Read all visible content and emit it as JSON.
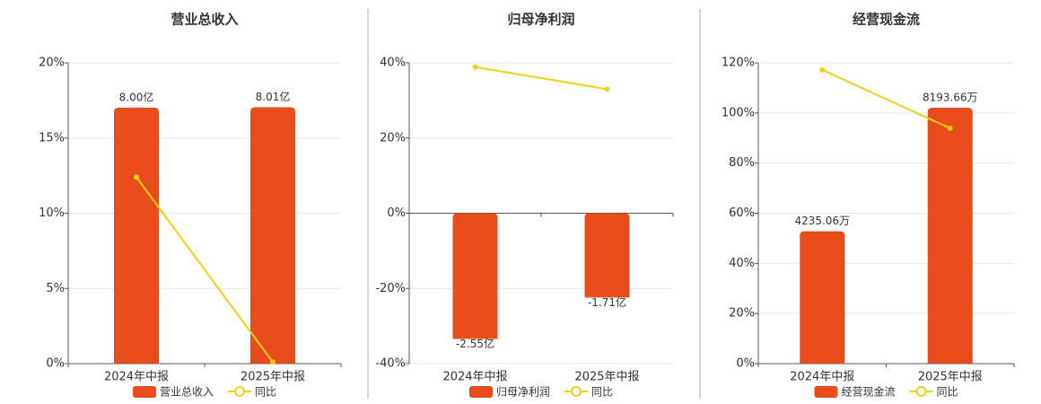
{
  "chart_data": [
    {
      "type": "bar",
      "title": "营业总收入",
      "categories": [
        "2024年中报",
        "2025年中报"
      ],
      "series": [
        {
          "name": "营业总收入",
          "type": "bar",
          "color": "#e84c1b",
          "axis": "y2",
          "values": [
            8.0,
            8.01
          ],
          "value_labels": [
            "8.00亿",
            "8.01亿"
          ]
        },
        {
          "name": "同比",
          "type": "line",
          "color": "#f2d011",
          "values": [
            12.4,
            0.1
          ]
        }
      ],
      "ylim": [
        0,
        20
      ],
      "yticks": [
        {
          "value": 0,
          "label": "0%"
        },
        {
          "value": 5,
          "label": "5%"
        },
        {
          "value": 10,
          "label": "10%"
        },
        {
          "value": 15,
          "label": "15%"
        },
        {
          "value": 20,
          "label": "20%"
        }
      ],
      "y2lim": [
        0,
        9.4
      ],
      "grid": true
    },
    {
      "type": "bar",
      "title": "归母净利润",
      "categories": [
        "2024年中报",
        "2025年中报"
      ],
      "series": [
        {
          "name": "归母净利润",
          "type": "bar",
          "color": "#e84c1b",
          "axis": "y2",
          "values": [
            -2.55,
            -1.71
          ],
          "value_labels": [
            "-2.55亿",
            "-1.71亿"
          ]
        },
        {
          "name": "同比",
          "type": "line",
          "color": "#f2d011",
          "values": [
            38.9,
            33.0
          ]
        }
      ],
      "ylim": [
        -40,
        40
      ],
      "yticks": [
        {
          "value": -40,
          "label": "-40%"
        },
        {
          "value": -20,
          "label": "-20%"
        },
        {
          "value": 0,
          "label": "0%"
        },
        {
          "value": 20,
          "label": "20%"
        },
        {
          "value": 40,
          "label": "40%"
        }
      ],
      "y2lim": [
        -3.05,
        3.05
      ],
      "grid": true
    },
    {
      "type": "bar",
      "title": "经营现金流",
      "categories": [
        "2024年中报",
        "2025年中报"
      ],
      "series": [
        {
          "name": "经营现金流",
          "type": "bar",
          "color": "#e84c1b",
          "axis": "y2",
          "values": [
            4235.06,
            8193.66
          ],
          "value_labels": [
            "4235.06万",
            "8193.66万"
          ]
        },
        {
          "name": "同比",
          "type": "line",
          "color": "#f2d011",
          "values": [
            117.2,
            93.9
          ]
        }
      ],
      "ylim": [
        0,
        120
      ],
      "yticks": [
        {
          "value": 0,
          "label": "0%"
        },
        {
          "value": 20,
          "label": "20%"
        },
        {
          "value": 40,
          "label": "40%"
        },
        {
          "value": 60,
          "label": "60%"
        },
        {
          "value": 80,
          "label": "80%"
        },
        {
          "value": 100,
          "label": "100%"
        },
        {
          "value": 120,
          "label": "120%"
        }
      ],
      "y2lim": [
        0,
        9630
      ],
      "grid": true
    }
  ]
}
